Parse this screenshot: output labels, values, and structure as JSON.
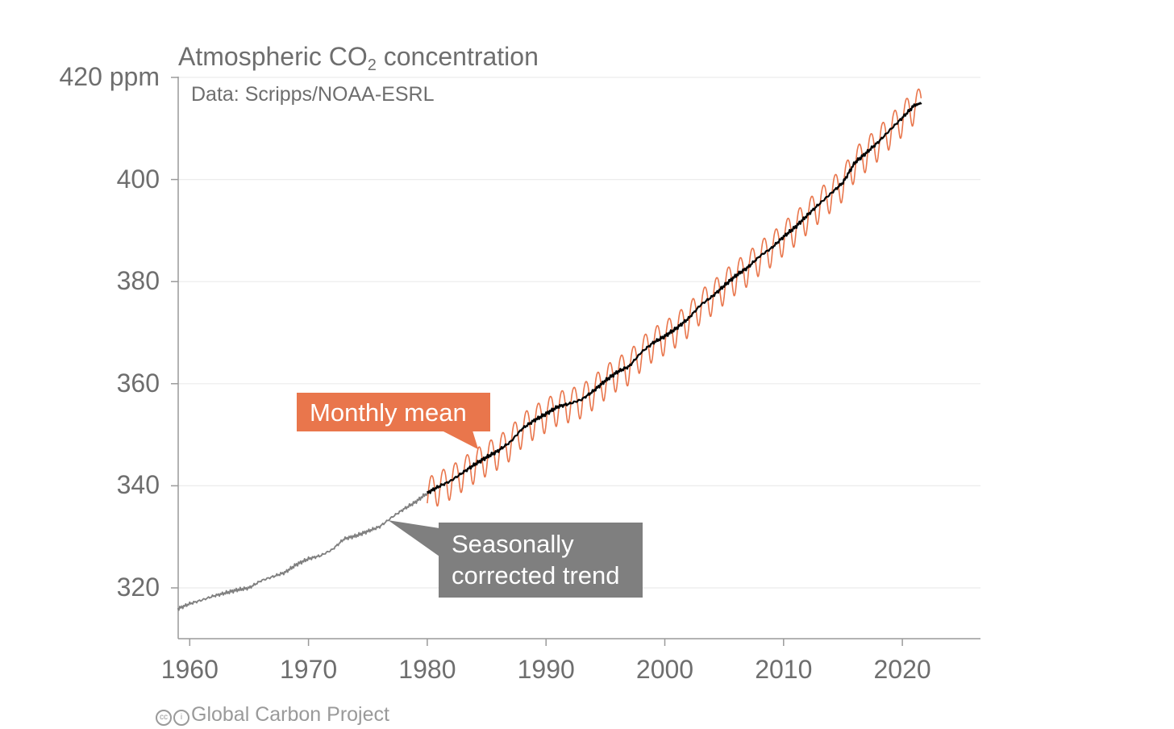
{
  "chart_data": {
    "type": "line",
    "title": "Atmospheric CO",
    "title_subscript": "2",
    "title_suffix": " concentration",
    "subtitle": "Data: Scripps/NOAA-ESRL",
    "xlabel": "",
    "ylabel": "",
    "xlim": [
      1959,
      2026
    ],
    "ylim": [
      310,
      420
    ],
    "x_ticks": [
      1960,
      1970,
      1980,
      1990,
      2000,
      2010,
      2020
    ],
    "y_ticks": [
      {
        "value": 420,
        "label": "420 ppm"
      },
      {
        "value": 400,
        "label": "400"
      },
      {
        "value": 380,
        "label": "380"
      },
      {
        "value": 360,
        "label": "360"
      },
      {
        "value": 340,
        "label": "340"
      },
      {
        "value": 320,
        "label": "320"
      }
    ],
    "grid": "horizontal",
    "series": [
      {
        "name": "Seasonally corrected trend",
        "color": "#7f7f7f",
        "x": [
          1959,
          1960,
          1961,
          1962,
          1963,
          1964,
          1965,
          1966,
          1967,
          1968,
          1969,
          1970,
          1971,
          1972,
          1973,
          1974,
          1975,
          1976,
          1977,
          1978,
          1979,
          1980
        ],
        "values": [
          315.9,
          316.9,
          317.6,
          318.4,
          319.0,
          319.6,
          320.0,
          321.4,
          322.2,
          323.0,
          324.6,
          325.7,
          326.3,
          327.5,
          329.6,
          330.2,
          331.1,
          332.0,
          333.8,
          335.4,
          336.8,
          338.6
        ]
      },
      {
        "name": "Seasonally corrected trend",
        "color": "#000000",
        "x": [
          1980,
          1981,
          1982,
          1983,
          1984,
          1985,
          1986,
          1987,
          1988,
          1989,
          1990,
          1991,
          1992,
          1993,
          1994,
          1995,
          1996,
          1997,
          1998,
          1999,
          2000,
          2001,
          2002,
          2003,
          2004,
          2005,
          2006,
          2007,
          2008,
          2009,
          2010,
          2011,
          2012,
          2013,
          2014,
          2015,
          2016,
          2017,
          2018,
          2019,
          2020,
          2021,
          2021.6
        ],
        "values": [
          338.6,
          339.9,
          341.0,
          342.6,
          344.2,
          345.6,
          346.9,
          348.6,
          351.2,
          352.8,
          354.1,
          355.5,
          356.1,
          356.9,
          358.6,
          360.6,
          362.3,
          363.4,
          366.1,
          368.0,
          369.3,
          370.9,
          372.8,
          375.4,
          377.1,
          379.2,
          381.2,
          382.8,
          385.0,
          386.6,
          388.8,
          390.7,
          393.0,
          395.2,
          397.3,
          399.4,
          403.3,
          405.3,
          407.4,
          409.8,
          412.1,
          414.5,
          415.0
        ]
      },
      {
        "name": "Monthly mean",
        "color": "#e9764c",
        "x_start": 1980,
        "x_end": 2021.6,
        "seasonal_amplitude_ppm": 3.3
      }
    ],
    "annotations": [
      "Monthly mean",
      "Seasonally corrected trend"
    ]
  },
  "callouts": {
    "monthly": "Monthly mean",
    "trend_line1": "Seasonally",
    "trend_line2": "corrected trend"
  },
  "credit": "Global Carbon Project",
  "credit_icons": [
    "creative-commons-icon",
    "attribution-icon"
  ]
}
